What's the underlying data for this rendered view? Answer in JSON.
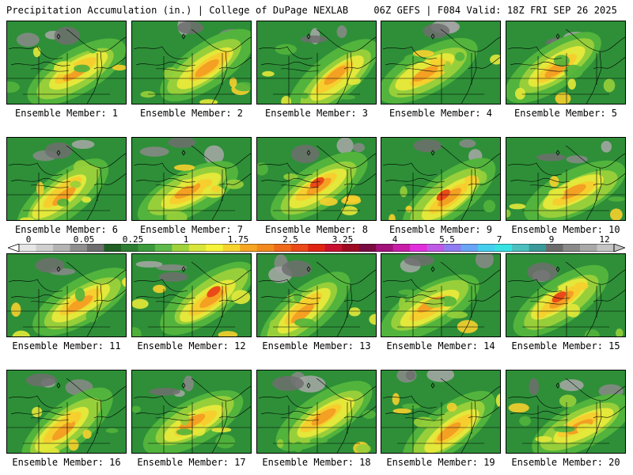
{
  "header": {
    "left": "Precipitation Accumulation (in.) | College of DuPage NEXLAB",
    "right": "06Z GEFS | F084 Valid: 18Z FRI SEP 26 2025"
  },
  "colorbar": {
    "labels": [
      "0",
      "0.05",
      "0.25",
      "1",
      "1.75",
      "2.5",
      "3.25",
      "4",
      "5.5",
      "7",
      "9",
      "12"
    ],
    "colors": [
      "#e6e6e6",
      "#cfcfcf",
      "#b4b4b4",
      "#8f8f8f",
      "#6e6e6e",
      "#205f25",
      "#2e7d32",
      "#3c9a3c",
      "#5eb84a",
      "#9fd23c",
      "#d8e53a",
      "#f7f23a",
      "#f7d32f",
      "#f6a623",
      "#f38a1f",
      "#ef6a1b",
      "#ea4a18",
      "#e02414",
      "#c8102e",
      "#9e0a22",
      "#7a0b40",
      "#a2127a",
      "#c81ea7",
      "#e22fdc",
      "#c05ae6",
      "#8f7cf0",
      "#69a4f5",
      "#45cfef",
      "#39e2e2",
      "#4dbfbf",
      "#3a9a9a",
      "#6b6b6b",
      "#8a8a8a",
      "#a8a8a8",
      "#c4c4c4"
    ],
    "label_colors": [
      "#000000"
    ]
  },
  "members": [
    {
      "caption": "Ensemble Member: 1"
    },
    {
      "caption": "Ensemble Member: 2"
    },
    {
      "caption": "Ensemble Member: 3"
    },
    {
      "caption": "Ensemble Member: 4"
    },
    {
      "caption": "Ensemble Member: 5"
    },
    {
      "caption": "Ensemble Member: 6"
    },
    {
      "caption": "Ensemble Member: 7"
    },
    {
      "caption": "Ensemble Member: 8"
    },
    {
      "caption": "Ensemble Member: 9"
    },
    {
      "caption": "Ensemble Member: 10"
    },
    {
      "caption": "Ensemble Member: 11"
    },
    {
      "caption": "Ensemble Member: 12"
    },
    {
      "caption": "Ensemble Member: 13"
    },
    {
      "caption": "Ensemble Member: 14"
    },
    {
      "caption": "Ensemble Member: 15"
    },
    {
      "caption": "Ensemble Member: 16"
    },
    {
      "caption": "Ensemble Member: 17"
    },
    {
      "caption": "Ensemble Member: 18"
    },
    {
      "caption": "Ensemble Member: 19"
    },
    {
      "caption": "Ensemble Member: 20"
    }
  ]
}
